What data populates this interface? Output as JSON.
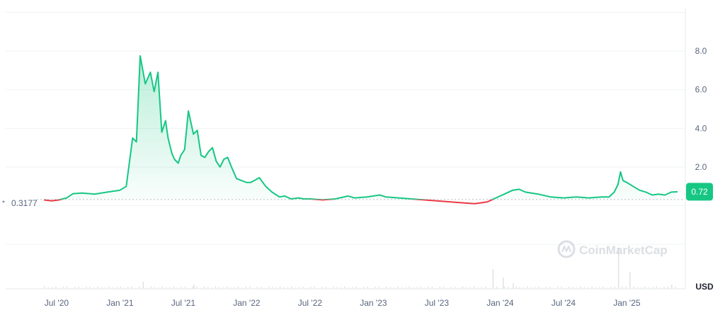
{
  "chart_data": {
    "type": "line",
    "title": "",
    "xlabel": "",
    "ylabel": "",
    "currency_label": "USD",
    "baseline": {
      "value": 0.3177,
      "label": "0.3177"
    },
    "current_price": {
      "value": 0.72,
      "label": "0.72"
    },
    "ylim": [
      -4.3,
      10.2
    ],
    "y_ticks": [
      {
        "value": 2.0,
        "label": "2.0"
      },
      {
        "value": 4.0,
        "label": "4.0"
      },
      {
        "value": 6.0,
        "label": "6.0"
      },
      {
        "value": 8.0,
        "label": "8.0"
      }
    ],
    "x_ticks": [
      "Jul '20",
      "Jan '21",
      "Jul '21",
      "Jan '22",
      "Jul '22",
      "Jan '23",
      "Jul '23",
      "Jan '24",
      "Jul '24",
      "Jan '25"
    ],
    "grid": true,
    "up_color": "#16c784",
    "down_color": "#ea3943",
    "watermark": "CoinMarketCap",
    "series": [
      {
        "x": [
          2020.4,
          2020.46,
          2020.52,
          2020.58,
          2020.63,
          2020.7,
          2020.8,
          2020.9,
          2021.0,
          2021.05,
          2021.1,
          2021.13,
          2021.16,
          2021.2,
          2021.24,
          2021.27,
          2021.3,
          2021.33,
          2021.36,
          2021.38,
          2021.41,
          2021.43,
          2021.46,
          2021.48,
          2021.51,
          2021.54,
          2021.58,
          2021.61,
          2021.64,
          2021.67,
          2021.7,
          2021.73,
          2021.76,
          2021.79,
          2021.82,
          2021.85,
          2021.88,
          2021.92,
          2021.96,
          2022.0,
          2022.03,
          2022.06,
          2022.1,
          2022.15,
          2022.2,
          2022.26,
          2022.3,
          2022.35,
          2022.41,
          2022.45,
          2022.5,
          2022.6,
          2022.7,
          2022.8,
          2022.85,
          2022.95,
          2023.05,
          2023.1,
          2023.2,
          2023.3,
          2023.4,
          2023.5,
          2023.6,
          2023.7,
          2023.8,
          2023.85,
          2023.9,
          2024.0,
          2024.05,
          2024.1,
          2024.15,
          2024.2,
          2024.3,
          2024.4,
          2024.5,
          2024.6,
          2024.7,
          2024.8,
          2024.86,
          2024.9,
          2024.93,
          2024.95,
          2024.97,
          2025.0,
          2025.05,
          2025.1,
          2025.15,
          2025.2,
          2025.25,
          2025.3,
          2025.35,
          2025.4
        ],
        "y": [
          0.3,
          0.25,
          0.3,
          0.4,
          0.62,
          0.65,
          0.6,
          0.7,
          0.8,
          1.0,
          3.5,
          3.3,
          7.75,
          6.3,
          6.9,
          5.9,
          6.9,
          3.8,
          4.4,
          3.5,
          2.7,
          2.4,
          2.2,
          2.6,
          2.9,
          4.9,
          3.7,
          3.9,
          2.6,
          2.5,
          2.8,
          3.0,
          2.3,
          2.0,
          2.4,
          2.5,
          2.0,
          1.4,
          1.3,
          1.2,
          1.2,
          1.3,
          1.45,
          1.0,
          0.7,
          0.45,
          0.5,
          0.35,
          0.4,
          0.35,
          0.35,
          0.3,
          0.35,
          0.5,
          0.4,
          0.45,
          0.55,
          0.45,
          0.4,
          0.35,
          0.3,
          0.25,
          0.2,
          0.15,
          0.1,
          0.15,
          0.2,
          0.5,
          0.65,
          0.8,
          0.85,
          0.7,
          0.6,
          0.45,
          0.4,
          0.45,
          0.4,
          0.45,
          0.45,
          0.7,
          1.1,
          1.75,
          1.3,
          1.2,
          1.0,
          0.8,
          0.7,
          0.55,
          0.6,
          0.55,
          0.7,
          0.72
        ]
      }
    ]
  }
}
